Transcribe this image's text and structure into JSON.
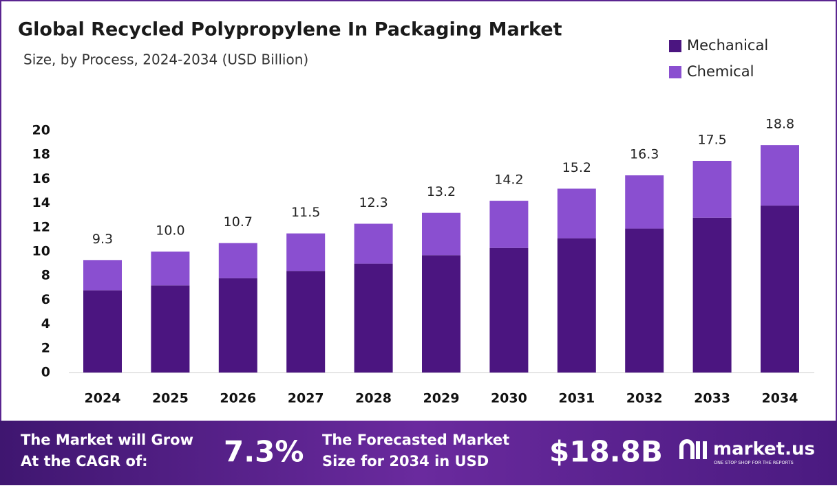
{
  "chart_data": {
    "type": "stacked-bar",
    "title": "Global Recycled Polypropylene In Packaging Market",
    "subtitle": "Size, by Process, 2024-2034 (USD Billion)",
    "categories": [
      "2024",
      "2025",
      "2026",
      "2027",
      "2028",
      "2029",
      "2030",
      "2031",
      "2032",
      "2033",
      "2034"
    ],
    "series": [
      {
        "name": "Mechanical",
        "color": "#4b1580",
        "values": [
          6.8,
          7.2,
          7.8,
          8.4,
          9.0,
          9.7,
          10.3,
          11.1,
          11.9,
          12.8,
          13.8
        ]
      },
      {
        "name": "Chemical",
        "color": "#8a4fd0",
        "values": [
          2.5,
          2.8,
          2.9,
          3.1,
          3.3,
          3.5,
          3.9,
          4.1,
          4.4,
          4.7,
          5.0
        ]
      }
    ],
    "total_labels": [
      "9.3",
      "10.0",
      "10.7",
      "11.5",
      "12.3",
      "13.2",
      "14.2",
      "15.2",
      "16.3",
      "17.5",
      "18.8"
    ],
    "ylim": [
      0,
      20
    ],
    "yticks": [
      0,
      2,
      4,
      6,
      8,
      10,
      12,
      14,
      16,
      18,
      20
    ],
    "legend": "top-right"
  },
  "footer": {
    "cagr_line1": "The Market will Grow",
    "cagr_line2": "At the CAGR of:",
    "cagr": "7.3%",
    "forecast_line1": "The Forecasted Market",
    "forecast_line2": "Size for 2034 in USD",
    "forecast": "$18.8B",
    "brand": "market.us",
    "tagline": "ONE STOP SHOP FOR THE REPORTS"
  }
}
